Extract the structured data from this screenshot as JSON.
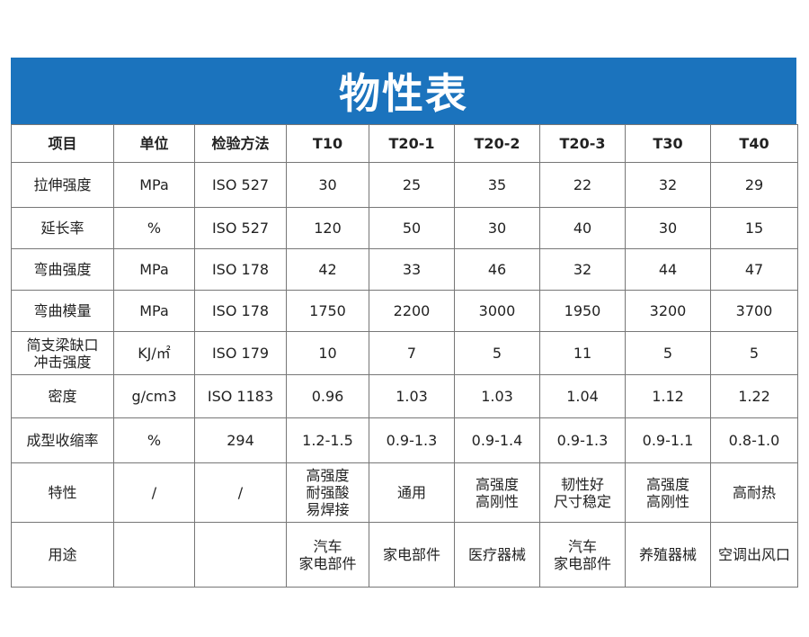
{
  "title": "物性表",
  "headers": [
    "项目",
    "单位",
    "检验方法",
    "T10",
    "T20-1",
    "T20-2",
    "T20-3",
    "T30",
    "T40"
  ],
  "rows": [
    [
      "拉伸强度",
      "MPa",
      "ISO 527",
      "30",
      "25",
      "35",
      "22",
      "32",
      "29"
    ],
    [
      "延长率",
      "%",
      "ISO 527",
      "120",
      "50",
      "30",
      "40",
      "30",
      "15"
    ],
    [
      "弯曲强度",
      "MPa",
      "ISO 178",
      "42",
      "33",
      "46",
      "32",
      "44",
      "47"
    ],
    [
      "弯曲模量",
      "MPa",
      "ISO 178",
      "1750",
      "2200",
      "3000",
      "1950",
      "3200",
      "3700"
    ],
    [
      "简支梁缺口\n冲击强度",
      "KJ/㎡",
      "ISO 179",
      "10",
      "7",
      "5",
      "11",
      "5",
      "5"
    ],
    [
      "密度",
      "g/cm3",
      "ISO 1183",
      "0.96",
      "1.03",
      "1.03",
      "1.04",
      "1.12",
      "1.22"
    ],
    [
      "成型收缩率",
      "%",
      "294",
      "1.2-1.5",
      "0.9-1.3",
      "0.9-1.4",
      "0.9-1.3",
      "0.9-1.1",
      "0.8-1.0"
    ],
    [
      "特性",
      "/",
      "/",
      "高强度\n耐强酸\n易焊接",
      "通用",
      "高强度\n高刚性",
      "韧性好\n尺寸稳定",
      "高强度\n高刚性",
      "高耐热"
    ],
    [
      "用途",
      "",
      "",
      "汽车\n家电部件",
      "家电部件",
      "医疗器械",
      "汽车\n家电部件",
      "养殖器械",
      "空调出风口"
    ]
  ],
  "colors": {
    "banner": "#1b73bd"
  }
}
